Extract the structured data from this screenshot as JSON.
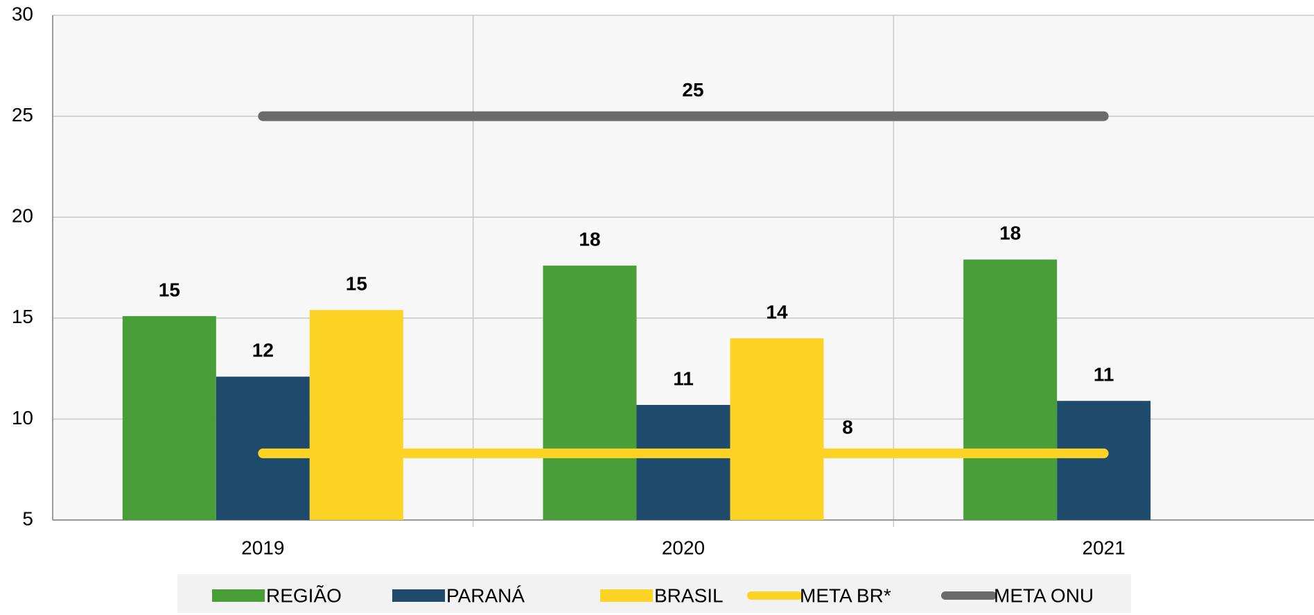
{
  "chart_data": {
    "type": "bar",
    "categories": [
      "2019",
      "2020",
      "2021"
    ],
    "series": [
      {
        "name": "REGIÃO",
        "type": "bar",
        "color": "#4a9e3a",
        "values": [
          15.1,
          17.6,
          17.9
        ],
        "value_labels": [
          "15",
          "18",
          "18"
        ]
      },
      {
        "name": "PARANÁ",
        "type": "bar",
        "color": "#1e4a6b",
        "values": [
          12.1,
          10.7,
          10.9
        ],
        "value_labels": [
          "12",
          "11",
          "11"
        ]
      },
      {
        "name": "BRASIL",
        "type": "bar",
        "color": "#fdd325",
        "values": [
          15.4,
          14.0,
          null
        ],
        "value_labels": [
          "15",
          "14",
          null
        ]
      },
      {
        "name": "META BR*",
        "type": "line",
        "color": "#fdd325",
        "values": [
          8.3,
          8.3,
          8.3
        ],
        "value_labels": [
          null,
          "8",
          null
        ]
      },
      {
        "name": "META ONU",
        "type": "line",
        "color": "#6b6b6b",
        "values": [
          25,
          25,
          25
        ],
        "value_labels": [
          null,
          "25",
          null
        ]
      }
    ],
    "ylim": [
      5,
      30
    ],
    "yticks": [
      5,
      10,
      15,
      20,
      25,
      30
    ],
    "grid": true,
    "legend": "bottom"
  }
}
